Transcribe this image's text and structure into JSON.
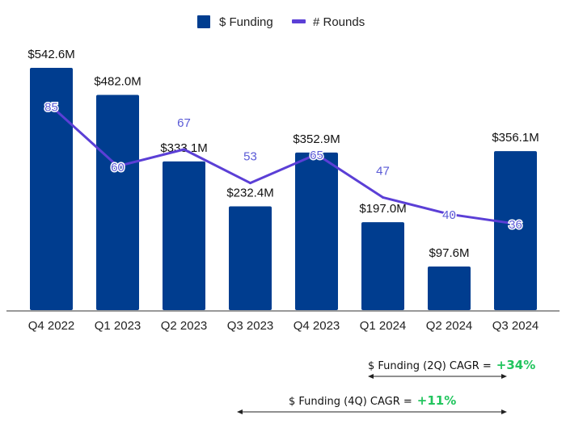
{
  "chart_data": {
    "type": "bar",
    "title": "",
    "xlabel": "",
    "ylabel": "",
    "categories": [
      "Q4 2022",
      "Q1 2023",
      "Q2 2023",
      "Q3 2023",
      "Q4 2023",
      "Q1 2024",
      "Q2 2024",
      "Q3 2024"
    ],
    "series": [
      {
        "name": "$ Funding",
        "type": "bar",
        "color": "#003d8f",
        "values": [
          542.6,
          482.0,
          333.1,
          232.4,
          352.9,
          197.0,
          97.6,
          356.1
        ],
        "labels": [
          "$542.6M",
          "$482.0M",
          "$333.1M",
          "$232.4M",
          "$352.9M",
          "$197.0M",
          "$97.6M",
          "$356.1M"
        ]
      },
      {
        "name": "# Rounds",
        "type": "line",
        "color": "#5b3fd6",
        "values": [
          85,
          60,
          67,
          53,
          65,
          47,
          40,
          36
        ],
        "labels": [
          "85",
          "60",
          "67",
          "53",
          "65",
          "47",
          "40",
          "36"
        ]
      }
    ],
    "ylim": [
      0,
      542.6
    ],
    "y2lim": [
      0,
      129
    ],
    "grid": false,
    "legend": "top-center"
  },
  "legend": {
    "funding": "$ Funding",
    "rounds": "# Rounds"
  },
  "annotations": {
    "cagr_2q": {
      "label": "$ Funding (2Q) CAGR =",
      "value": "+34%"
    },
    "cagr_4q": {
      "label": "$ Funding (4Q) CAGR =",
      "value": "+11%"
    }
  },
  "colors": {
    "positive": "#22c55e"
  }
}
